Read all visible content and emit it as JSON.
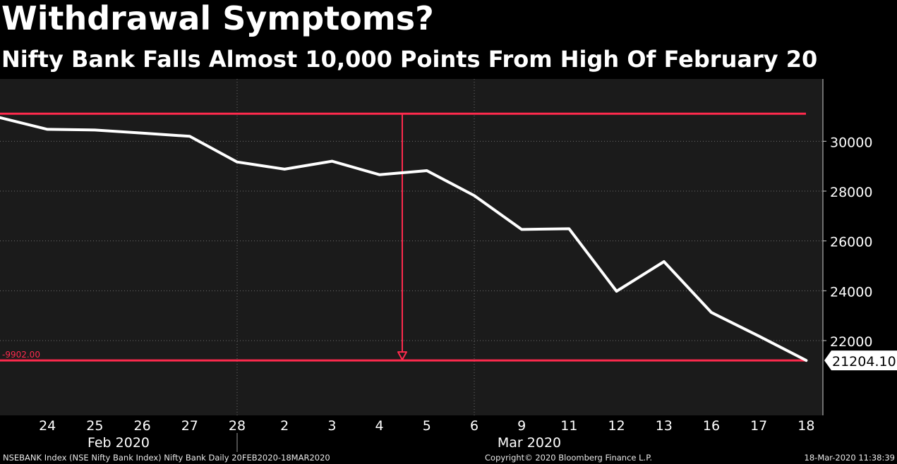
{
  "title": "Withdrawal Symptoms?",
  "subtitle": "Nifty Bank Falls Almost 10,000 Points From High Of February 20",
  "footer": {
    "left": "NSEBANK Index (NSE Nifty Bank Index) Nifty Bank  Daily 20FEB2020-18MAR2020",
    "center": "Copyright© 2020 Bloomberg Finance L.P.",
    "right": "18-Mar-2020 11:38:39"
  },
  "colors": {
    "background": "#000000",
    "plot_background": "#1b1b1b",
    "series_line": "#ffffff",
    "annotation": "#ff2a4d",
    "grid": "#6e6e6e"
  },
  "chart_data": {
    "type": "line",
    "title": "Withdrawal Symptoms?",
    "subtitle": "Nifty Bank Falls Almost 10,000 Points From High Of February 20",
    "x_tick_labels": [
      "24",
      "25",
      "26",
      "27",
      "28",
      "2",
      "3",
      "4",
      "5",
      "6",
      "9",
      "11",
      "12",
      "13",
      "16",
      "17",
      "18"
    ],
    "x_group_labels": [
      "Feb 2020",
      "Mar 2020"
    ],
    "x": [
      "2020-02-21",
      "2020-02-24",
      "2020-02-25",
      "2020-02-26",
      "2020-02-27",
      "2020-02-28",
      "2020-03-02",
      "2020-03-03",
      "2020-03-04",
      "2020-03-05",
      "2020-03-06",
      "2020-03-09",
      "2020-03-11",
      "2020-03-12",
      "2020-03-13",
      "2020-03-16",
      "2020-03-17",
      "2020-03-18"
    ],
    "series": [
      {
        "values": [
          30950,
          30480,
          30450,
          30330,
          30200,
          29170,
          28880,
          29200,
          28660,
          28820,
          27820,
          26460,
          26490,
          23980,
          25170,
          23130,
          22180,
          21204.1
        ]
      }
    ],
    "last_value_label": "21204.10",
    "y_ticks": [
      22000,
      24000,
      26000,
      28000,
      30000
    ],
    "ylim": [
      19000,
      32500
    ],
    "y_axis_side": "right",
    "grid": true,
    "annotations": {
      "high_level": 31106.1,
      "low_level": 21204.1,
      "difference_label": "-9902.00",
      "arrow": "down, from the high line to the low line, between 4 and 5 Mar"
    }
  }
}
